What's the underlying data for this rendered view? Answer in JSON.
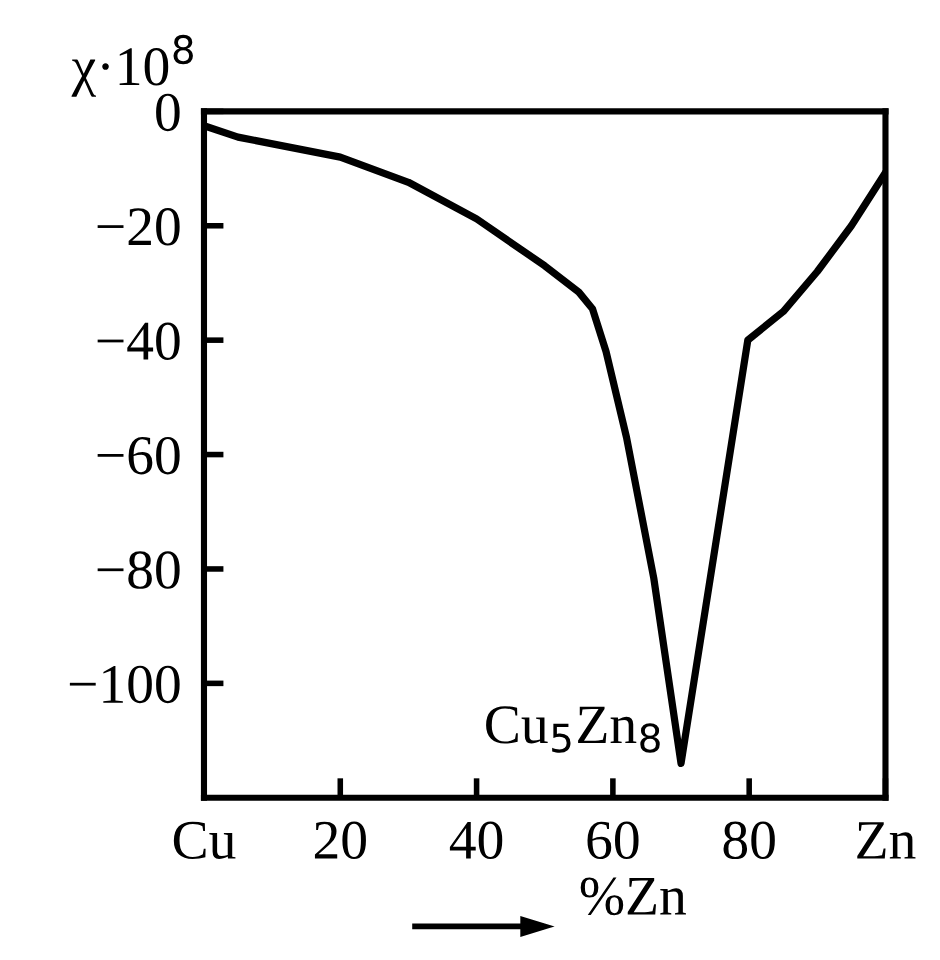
{
  "chart_data": {
    "type": "line",
    "xlabel": "%Zn",
    "ylabel": "χ·10$^{8}$",
    "x": [
      0,
      5,
      20,
      30,
      40,
      50,
      55,
      57,
      59,
      62,
      66,
      70,
      79.8,
      85,
      90,
      95,
      100
    ],
    "series": [
      {
        "color": "#000000",
        "values": [
          -2.5,
          -4.5,
          -8,
          -12.4,
          -18.8,
          -27,
          -31.6,
          -34.5,
          -42,
          -57,
          -81.6,
          -114,
          -40,
          -35,
          -28,
          -20,
          -10.7
        ]
      }
    ],
    "xlim": [
      0,
      100
    ],
    "xticks": [
      {
        "value": 0,
        "label": "Cu"
      },
      20,
      40,
      60,
      80,
      {
        "value": 100,
        "label": "Zn"
      }
    ],
    "ylim": [
      -120,
      0
    ],
    "yticks": [
      0,
      -20,
      -40,
      -60,
      -80,
      -100
    ],
    "annotations": [
      {
        "text": "Cu$_{5}$Zn$_{8}$",
        "x": 70,
        "y": -114
      }
    ],
    "grid": false,
    "legend": false,
    "marker": "none",
    "line_style": "solid"
  }
}
